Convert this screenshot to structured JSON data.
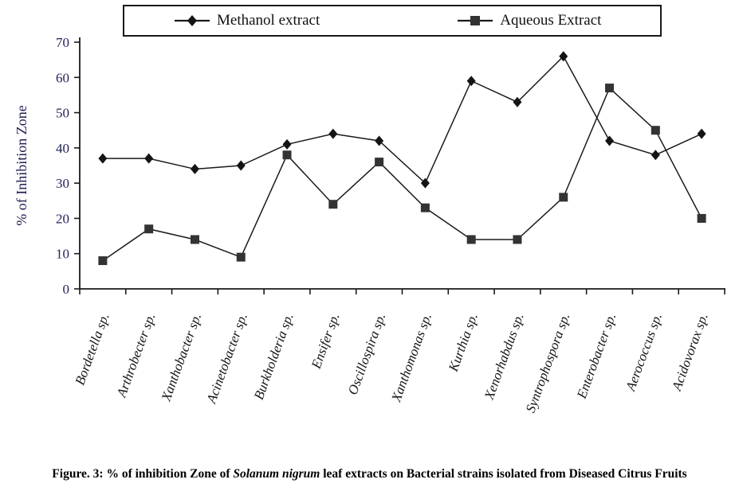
{
  "figure": {
    "caption": {
      "prefix": "Figure. 3: % of inhibition Zone of ",
      "italic": "Solanum nigrum",
      "suffix": " leaf extracts on Bacterial strains isolated from Diseased Citrus Fruits"
    }
  },
  "colors": {
    "background": "#ffffff",
    "axis": "#1a1a1a",
    "tick_label": "#23235c",
    "category_label": "#141414",
    "axis_title": "#1e1e52",
    "legend_border": "#1a1a1a"
  },
  "chart_data": {
    "type": "line",
    "title": "",
    "xlabel": "",
    "ylabel": "% of Inhibition Zone",
    "ylim": [
      0,
      70
    ],
    "yticks": [
      0,
      10,
      20,
      30,
      40,
      50,
      60,
      70
    ],
    "grid": false,
    "legend_position": "top",
    "categories": [
      "Bordetella sp.",
      "Arthrobecter sp.",
      "Xanthobacter sp.",
      "Acinetobacter sp.",
      "Burkholderia sp.",
      "Ensifer sp.",
      "Oscillospira sp.",
      "Xanthomonas sp.",
      "Kurthia sp.",
      "Xenorhabdus sp.",
      "Syntrophospora sp.",
      "Enterobacter sp.",
      "Aerococcus sp.",
      "Acidovorax sp."
    ],
    "series": [
      {
        "name": "Methanol extract",
        "marker": "diamond",
        "line_color": "#1a1a1a",
        "marker_color": "#141414",
        "values": [
          37,
          37,
          34,
          35,
          41,
          44,
          42,
          30,
          59,
          53,
          66,
          42,
          38,
          44
        ]
      },
      {
        "name": "Aqueous Extract",
        "marker": "square",
        "line_color": "#1a1a1a",
        "marker_color": "#333333",
        "values": [
          8,
          17,
          14,
          9,
          38,
          24,
          36,
          23,
          14,
          14,
          26,
          57,
          45,
          20
        ]
      }
    ]
  }
}
